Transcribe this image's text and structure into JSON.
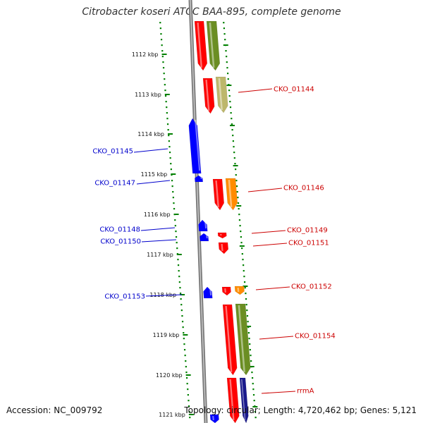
{
  "title": "Citrobacter koseri ATCC BAA-895, complete genome",
  "accession": "Accession: NC_009792",
  "stats": "Topology: circular; Length: 4,720,462 bp; Genes: 5,121",
  "colors": {
    "forward_cds": "#ff0000",
    "reverse_cds": "#0000ff",
    "cog_olive": "#6b8e23",
    "cog_khaki": "#bdb76b",
    "cog_orange": "#ff8c00",
    "rrna": "#1a1a8c",
    "backbone": "#888888",
    "tick_marks": "#008000",
    "forward_label": "#cc0000",
    "reverse_label": "#0000cc"
  },
  "ticks": [
    "1112 kbp",
    "1113 kbp",
    "1114 kbp",
    "1115 kbp",
    "1116 kbp",
    "1117 kbp",
    "1118 kbp",
    "1119 kbp",
    "1120 kbp",
    "1121 kbp"
  ],
  "gene_labels": [
    {
      "name": "CKO_01144",
      "strand": "forward"
    },
    {
      "name": "CKO_01145",
      "strand": "reverse"
    },
    {
      "name": "CKO_01146",
      "strand": "forward"
    },
    {
      "name": "CKO_01147",
      "strand": "reverse"
    },
    {
      "name": "CKO_01148",
      "strand": "reverse"
    },
    {
      "name": "CKO_01149",
      "strand": "forward"
    },
    {
      "name": "CKO_01150",
      "strand": "reverse"
    },
    {
      "name": "CKO_01151",
      "strand": "forward"
    },
    {
      "name": "CKO_01152",
      "strand": "forward"
    },
    {
      "name": "CKO_01153",
      "strand": "reverse"
    },
    {
      "name": "CKO_01154",
      "strand": "forward"
    },
    {
      "name": "rrmA",
      "strand": "forward"
    }
  ]
}
